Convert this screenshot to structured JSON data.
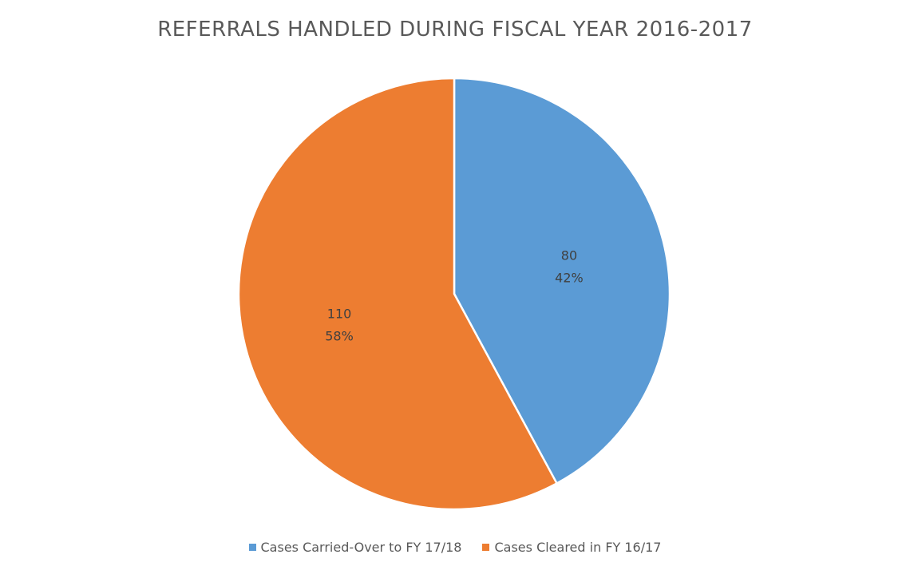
{
  "chart_data": {
    "type": "pie",
    "title": "REFERRALS HANDLED DURING FISCAL YEAR 2016-2017",
    "slices": [
      {
        "label": "Cases Carried-Over to FY 17/18",
        "value": 80,
        "value_label": "80",
        "percent_label": "42%",
        "color": "#5B9BD5"
      },
      {
        "label": "Cases Cleared in FY 16/17",
        "value": 110,
        "value_label": "110",
        "percent_label": "58%",
        "color": "#ED7D31"
      }
    ],
    "start_angle_deg": 0,
    "direction": "clockwise",
    "legend_position": "bottom"
  }
}
